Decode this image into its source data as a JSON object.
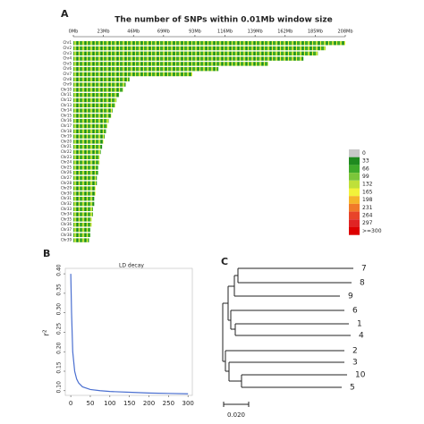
{
  "chart_data": [
    {
      "type": "chromosome-density",
      "panel": "A",
      "title": "The number of SNPs within 0.01Mb window size",
      "categories": [
        "Chr1",
        "Chr2",
        "Chr3",
        "Chr4",
        "Chr5",
        "Chr6",
        "Chr7",
        "Chr8",
        "Chr9",
        "Chr10",
        "Chr11",
        "Chr12",
        "Chr13",
        "Chr14",
        "Chr15",
        "Chr16",
        "Chr17",
        "Chr18",
        "Chr19",
        "Chr20",
        "Chr21",
        "Chr22",
        "Chr23",
        "Chr24",
        "Chr25",
        "Chr26",
        "Chr27",
        "Chr28",
        "Chr29",
        "Chr30",
        "Chr31",
        "Chr32",
        "Chr33",
        "Chr34",
        "Chr35",
        "Chr36",
        "Chr37",
        "Chr38",
        "Chr39"
      ],
      "values": [
        208,
        193,
        187,
        176,
        149,
        111,
        91,
        43,
        40,
        38,
        35,
        33,
        32,
        30,
        29,
        27,
        26,
        25,
        24,
        23,
        22,
        21,
        20,
        20,
        19,
        19,
        18,
        18,
        17,
        17,
        16,
        16,
        15,
        15,
        14,
        14,
        13,
        13,
        12
      ],
      "xlim": [
        0,
        208
      ],
      "xticks": [
        {
          "value": 0,
          "label": "0Mb"
        },
        {
          "value": 23,
          "label": "23Mb"
        },
        {
          "value": 46,
          "label": "46Mb"
        },
        {
          "value": 69,
          "label": "69Mb"
        },
        {
          "value": 93,
          "label": "93Mb"
        },
        {
          "value": 116,
          "label": "116Mb"
        },
        {
          "value": 139,
          "label": "139Mb"
        },
        {
          "value": 162,
          "label": "162Mb"
        },
        {
          "value": 185,
          "label": "185Mb"
        },
        {
          "value": 208,
          "label": "208Mb"
        }
      ],
      "legend": {
        "labels": [
          "0",
          "33",
          "66",
          "99",
          "132",
          "165",
          "198",
          "231",
          "264",
          "297",
          ">=300"
        ],
        "colors": [
          "#c8c8c8",
          "#1f8a1f",
          "#3faa2a",
          "#7cc63a",
          "#bfe03a",
          "#f2f23a",
          "#f5b52a",
          "#f07a2a",
          "#e8442a",
          "#e02424",
          "#dd0000"
        ]
      }
    },
    {
      "type": "line",
      "panel": "B",
      "title": "LD decay",
      "ylabel": "r²",
      "x": [
        0,
        2,
        5,
        10,
        15,
        20,
        30,
        50,
        75,
        100,
        150,
        200,
        250,
        300
      ],
      "values": [
        0.4,
        0.3,
        0.2,
        0.15,
        0.13,
        0.12,
        0.11,
        0.103,
        0.1,
        0.098,
        0.096,
        0.094,
        0.093,
        0.092
      ],
      "color": "#4a6fd0",
      "xlim": [
        -14,
        311
      ],
      "ylim": [
        0.088,
        0.414
      ],
      "xticks": [
        0,
        50,
        100,
        150,
        200,
        250,
        300
      ],
      "yticks": [
        {
          "value": 0.1,
          "label": "0.10"
        },
        {
          "value": 0.15,
          "label": "0.15"
        },
        {
          "value": 0.2,
          "label": "0.20"
        },
        {
          "value": 0.25,
          "label": "0.25"
        },
        {
          "value": 0.3,
          "label": "0.30"
        },
        {
          "value": 0.35,
          "label": "0.35"
        },
        {
          "value": 0.4,
          "label": "0.40"
        }
      ]
    }
  ],
  "tree": {
    "panel": "C",
    "leaves": [
      "7",
      "8",
      "9",
      "6",
      "1",
      "4",
      "2",
      "3",
      "10",
      "5"
    ],
    "scale_label": "0.020"
  }
}
